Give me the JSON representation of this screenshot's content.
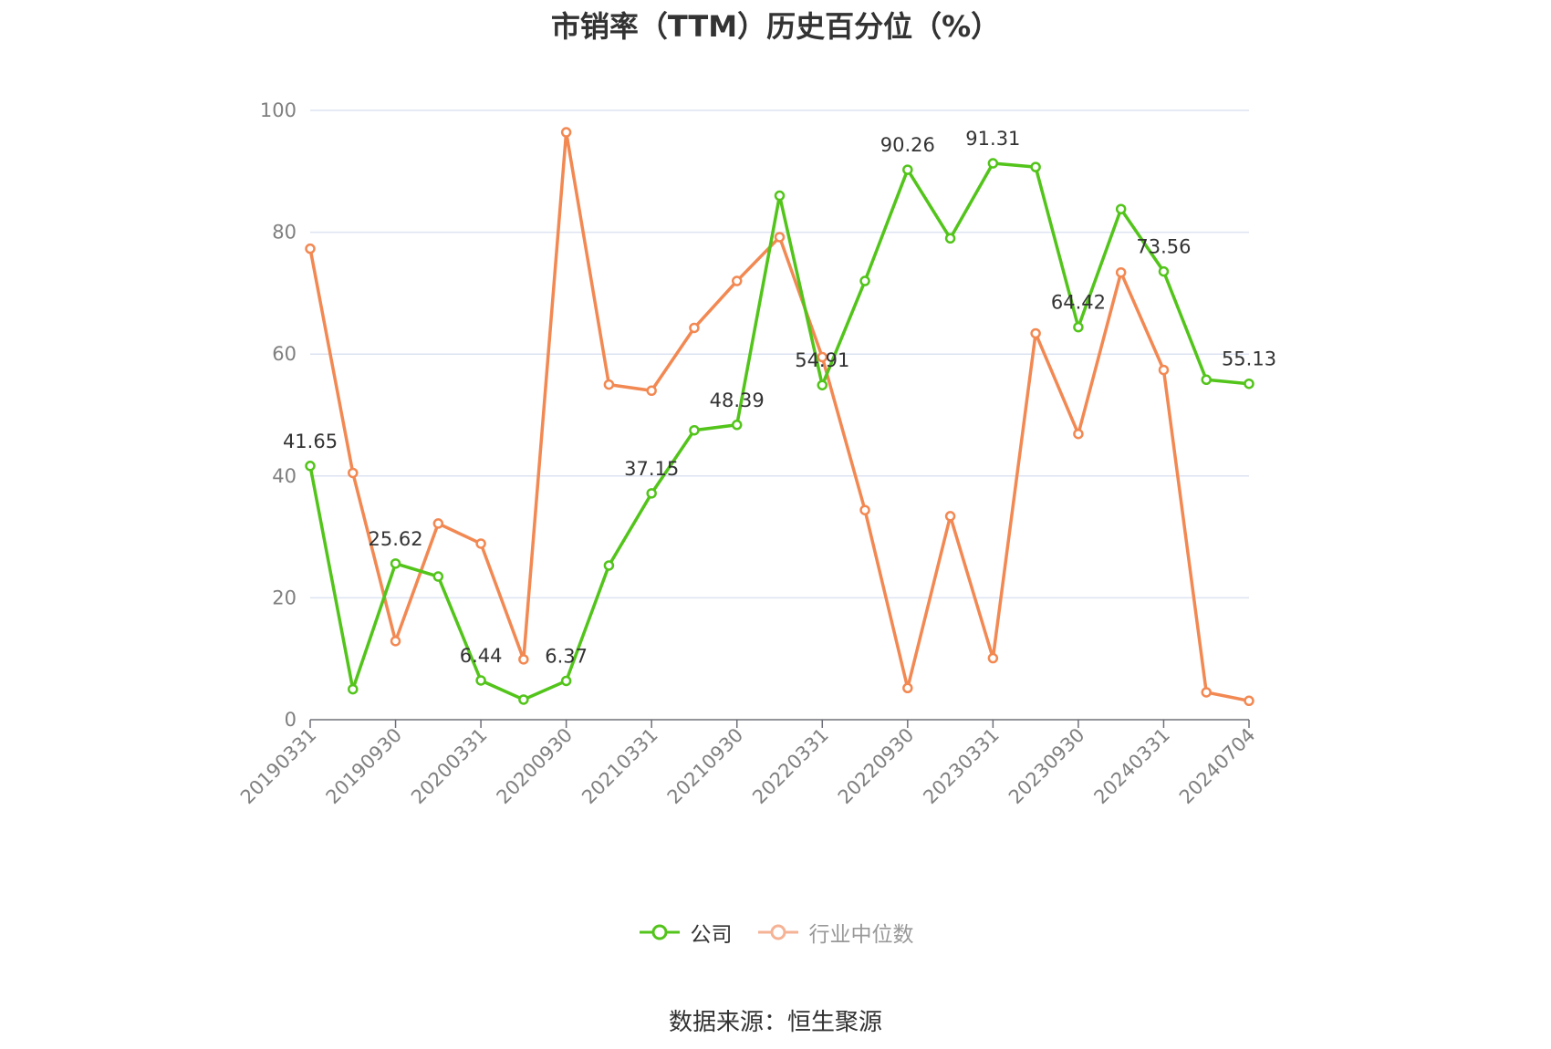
{
  "title": "市销率（TTM）历史百分位（%）",
  "source": "数据来源：恒生聚源",
  "colors": {
    "company": "#52c41a",
    "industry": "#f28852",
    "grid": "#dde3f0",
    "axis": "#6e7079"
  },
  "legend": [
    {
      "label": "公司",
      "color": "#52c41a"
    },
    {
      "label": "行业中位数",
      "color": "#f5b295"
    }
  ],
  "chart_data": {
    "type": "line",
    "title": "市销率（TTM）历史百分位（%）",
    "ylim": [
      0,
      100
    ],
    "y_ticks": [
      0,
      20,
      40,
      60,
      80,
      100
    ],
    "x": [
      "20190331",
      "20190630",
      "20190930",
      "20191231",
      "20200331",
      "20200630",
      "20200930",
      "20201231",
      "20210331",
      "20210630",
      "20210930",
      "20211231",
      "20220331",
      "20220630",
      "20220930",
      "20221231",
      "20230331",
      "20230630",
      "20230930",
      "20231231",
      "20240331",
      "20240630",
      "20240704"
    ],
    "x_tick_labels": [
      "20190331",
      "20190930",
      "20200331",
      "20200930",
      "20210331",
      "20210930",
      "20220331",
      "20220930",
      "20230331",
      "20230930",
      "20240331",
      "20240704"
    ],
    "grid": true,
    "legend_position": "bottom",
    "series": [
      {
        "name": "公司",
        "values": [
          41.65,
          5.0,
          25.62,
          23.5,
          6.44,
          3.3,
          6.37,
          25.3,
          37.15,
          47.5,
          48.39,
          86.0,
          54.91,
          72.0,
          90.26,
          79.0,
          91.31,
          90.7,
          64.42,
          83.8,
          73.56,
          55.8,
          55.13
        ],
        "labels": {
          "0": "41.65",
          "2": "25.62",
          "4": "6.44",
          "6": "6.37",
          "8": "37.15",
          "10": "48.39",
          "12": "54.91",
          "14": "90.26",
          "16": "91.31",
          "18": "64.42",
          "20": "73.56",
          "22": "55.13"
        }
      },
      {
        "name": "行业中位数",
        "values": [
          77.3,
          40.5,
          12.9,
          32.2,
          28.9,
          9.9,
          96.4,
          55.0,
          54.0,
          64.3,
          72.0,
          79.2,
          59.5,
          34.4,
          5.2,
          33.4,
          10.1,
          63.4,
          46.9,
          73.4,
          57.4,
          4.5,
          3.1
        ]
      }
    ]
  }
}
